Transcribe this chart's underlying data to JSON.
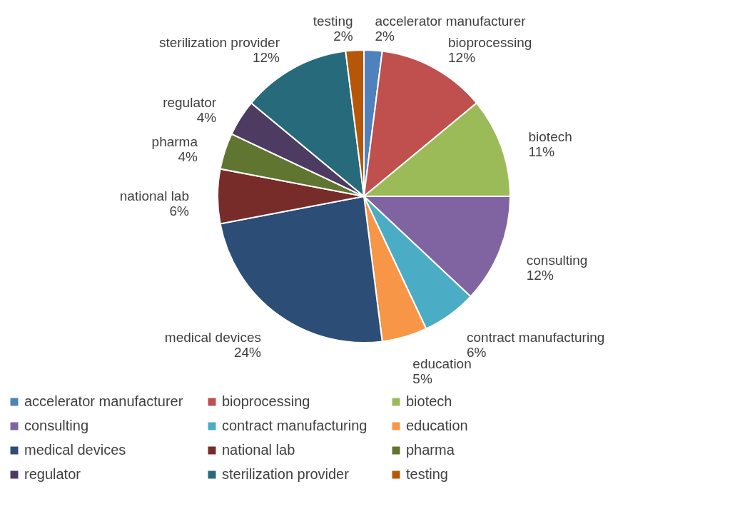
{
  "chart_data": {
    "type": "pie",
    "categories": [
      "accelerator manufacturer",
      "bioprocessing",
      "biotech",
      "consulting",
      "contract manufacturing",
      "education",
      "medical devices",
      "national lab",
      "pharma",
      "regulator",
      "sterilization provider",
      "testing"
    ],
    "values": [
      2,
      12,
      11,
      12,
      6,
      5,
      24,
      6,
      4,
      4,
      12,
      2
    ],
    "value_labels": [
      "2%",
      "12%",
      "11%",
      "12%",
      "6%",
      "5%",
      "24%",
      "6%",
      "4%",
      "4%",
      "12%",
      "2%"
    ],
    "colors": [
      "#4f81bd",
      "#c0504d",
      "#9bbb59",
      "#8064a2",
      "#4bacc6",
      "#f79646",
      "#2c4d75",
      "#772c2a",
      "#5f7530",
      "#4d3b62",
      "#276a7c",
      "#b65708"
    ],
    "legend": "bottom"
  }
}
